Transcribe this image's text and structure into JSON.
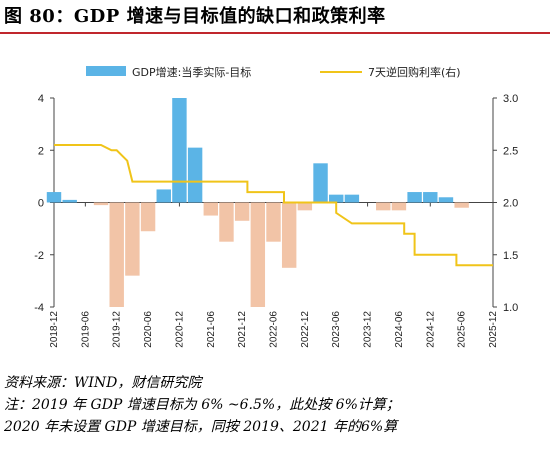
{
  "title": "图 80：GDP 增速与目标值的缺口和政策利率",
  "notes": {
    "source": "资料来源：WIND，财信研究院",
    "note1": "注：2019 年 GDP 增速目标为 6% ~6.5%，此处按 6%计算；",
    "note2": "2020 年未设置 GDP 增速目标，同按 2019、2021 年的6%算"
  },
  "colors": {
    "bar_positive": "#5bb4e6",
    "bar_negative": "#f2c4a7",
    "line": "#f0c419",
    "title_rule": "#c0262d"
  },
  "chart_data": {
    "type": "bar+line",
    "legend": [
      "GDP增速:当季实际-目标",
      "7天逆回购利率(右)"
    ],
    "legend_position": "top",
    "x_labels": [
      "2018-12",
      "2019-06",
      "2019-12",
      "2020-06",
      "2020-12",
      "2021-06",
      "2021-12",
      "2022-06",
      "2022-12",
      "2023-06",
      "2023-12",
      "2024-06",
      "2024-12",
      "2025-06",
      "2025-12"
    ],
    "y_left": {
      "min": -4,
      "max": 4,
      "ticks": [
        -4,
        -2,
        0,
        2,
        4
      ]
    },
    "y_right": {
      "min": 1.0,
      "max": 3.0,
      "ticks": [
        "1.0",
        "1.5",
        "2.0",
        "2.5",
        "3.0"
      ]
    },
    "gdp_gap": {
      "dates": [
        "2018-12",
        "2019-03",
        "2019-06",
        "2019-09",
        "2019-12",
        "2020-03",
        "2020-06",
        "2020-09",
        "2020-12",
        "2021-03",
        "2021-06",
        "2021-09",
        "2021-12",
        "2022-03",
        "2022-06",
        "2022-09",
        "2022-12",
        "2023-03",
        "2023-06",
        "2023-09",
        "2023-12",
        "2024-03",
        "2024-06",
        "2024-09",
        "2024-12",
        "2025-03",
        "2025-06",
        "2025-09"
      ],
      "values": [
        0.4,
        0.1,
        0.0,
        -0.1,
        -4.0,
        -2.8,
        -1.1,
        0.5,
        4.0,
        2.1,
        -0.5,
        -1.5,
        -0.7,
        -4.0,
        -1.5,
        -2.5,
        -0.3,
        1.5,
        0.3,
        0.3,
        0.0,
        -0.3,
        -0.3,
        0.4,
        0.4,
        0.2,
        -0.2,
        0.0
      ]
    },
    "repo_rate": {
      "points": [
        [
          "2018-12",
          2.55
        ],
        [
          "2019-09",
          2.55
        ],
        [
          "2019-11",
          2.5
        ],
        [
          "2019-12",
          2.5
        ],
        [
          "2020-02",
          2.4
        ],
        [
          "2020-03",
          2.2
        ],
        [
          "2022-01",
          2.2
        ],
        [
          "2022-01",
          2.1
        ],
        [
          "2022-08",
          2.1
        ],
        [
          "2022-08",
          2.0
        ],
        [
          "2023-06",
          2.0
        ],
        [
          "2023-06",
          1.9
        ],
        [
          "2023-09",
          1.8
        ],
        [
          "2024-07",
          1.8
        ],
        [
          "2024-07",
          1.7
        ],
        [
          "2024-09",
          1.7
        ],
        [
          "2024-09",
          1.5
        ],
        [
          "2025-05",
          1.5
        ],
        [
          "2025-05",
          1.4
        ],
        [
          "2025-12",
          1.4
        ]
      ]
    }
  }
}
